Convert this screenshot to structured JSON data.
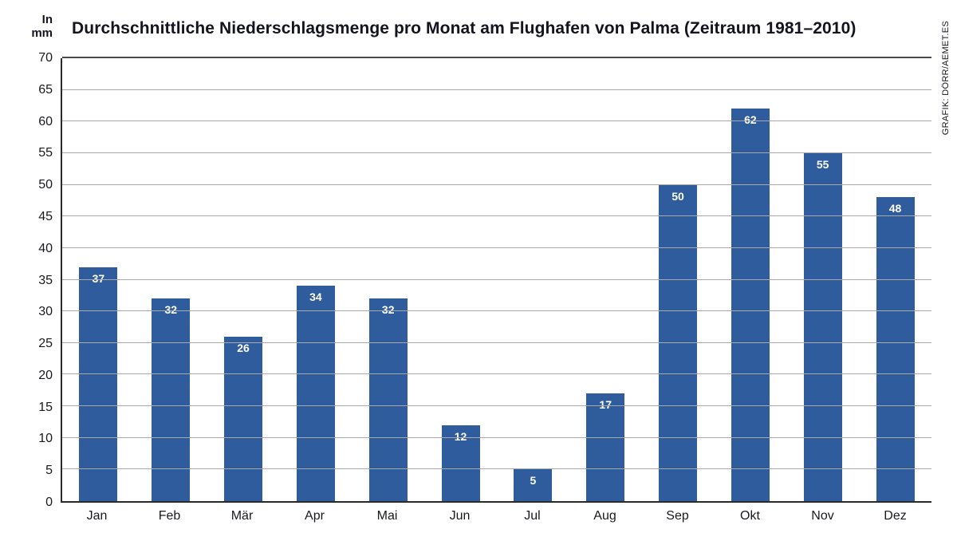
{
  "title": "Durchschnittliche Niederschlagsmenge pro Monat am Flughafen von Palma (Zeitraum 1981–2010)",
  "y_unit": {
    "line1": "In",
    "line2": "mm"
  },
  "credit": "GRAFIK: DÖRR/AEMET.ES",
  "chart_data": {
    "type": "bar",
    "categories": [
      "Jan",
      "Feb",
      "Mär",
      "Apr",
      "Mai",
      "Jun",
      "Jul",
      "Aug",
      "Sep",
      "Okt",
      "Nov",
      "Dez"
    ],
    "values": [
      37,
      32,
      26,
      34,
      32,
      12,
      5,
      17,
      50,
      62,
      55,
      48
    ],
    "title": "Durchschnittliche Niederschlagsmenge pro Monat am Flughafen von Palma (Zeitraum 1981–2010)",
    "xlabel": "",
    "ylabel": "In mm",
    "ylim": [
      0,
      70
    ],
    "ytick_step": 5,
    "bar_color": "#2e5c9c",
    "grid": true,
    "legend": false,
    "value_labels": true
  }
}
